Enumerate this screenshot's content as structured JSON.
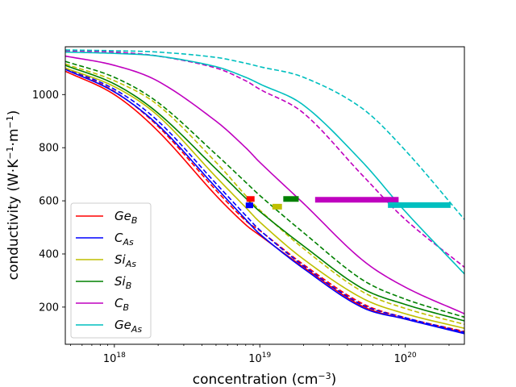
{
  "chart_data": {
    "type": "line",
    "xscale": "log",
    "xlim": [
      4.6e+17,
      2.55e+20
    ],
    "ylim": [
      60,
      1180
    ],
    "xlabel": {
      "base": "concentration (cm",
      "sup": "−3",
      "end": ")"
    },
    "ylabel": {
      "base": "conductivity (W·K",
      "sup1": "−1",
      "mid": "·m",
      "sup2": "−1",
      "end": ")"
    },
    "x_ticks": [
      {
        "value": 1e+18,
        "base": "10",
        "exp": "18"
      },
      {
        "value": 1e+19,
        "base": "10",
        "exp": "19"
      },
      {
        "value": 1e+20,
        "base": "10",
        "exp": "20"
      }
    ],
    "y_ticks": [
      {
        "value": 200,
        "label": "200"
      },
      {
        "value": 400,
        "label": "400"
      },
      {
        "value": 600,
        "label": "600"
      },
      {
        "value": 800,
        "label": "800"
      },
      {
        "value": 1000,
        "label": "1000"
      }
    ],
    "legend_position": "lower-left",
    "series": [
      {
        "id": "ge-b",
        "main": "Ge",
        "sub": "B",
        "color": "#ff0000",
        "solid": [
          [
            4.6e+17,
            1088
          ],
          [
            1e+18,
            1000
          ],
          [
            2e+18,
            862
          ],
          [
            5e+18,
            620
          ],
          [
            8e+18,
            510
          ],
          [
            1e+19,
            470
          ],
          [
            2e+19,
            350
          ],
          [
            5e+19,
            205
          ],
          [
            1e+20,
            155
          ],
          [
            2.55e+20,
            104
          ]
        ],
        "dashed": [
          [
            4.6e+17,
            1098
          ],
          [
            1e+18,
            1012
          ],
          [
            2e+18,
            880
          ],
          [
            5e+18,
            640
          ],
          [
            8e+18,
            525
          ],
          [
            1e+19,
            488
          ],
          [
            2e+19,
            360
          ],
          [
            5e+19,
            215
          ],
          [
            1e+20,
            160
          ],
          [
            2.55e+20,
            108
          ]
        ],
        "bar": {
          "x_start": 8.1e+18,
          "x_end": 9.2e+18,
          "y": 607
        }
      },
      {
        "id": "c-as",
        "main": "C",
        "sub": "As",
        "color": "#0000ff",
        "solid": [
          [
            4.6e+17,
            1095
          ],
          [
            1e+18,
            1010
          ],
          [
            2e+18,
            885
          ],
          [
            5e+18,
            650
          ],
          [
            8e+18,
            530
          ],
          [
            1e+19,
            475
          ],
          [
            2e+19,
            345
          ],
          [
            5e+19,
            200
          ],
          [
            1e+20,
            155
          ],
          [
            2.55e+20,
            100
          ]
        ],
        "dashed": [
          [
            4.6e+17,
            1100
          ],
          [
            1e+18,
            1020
          ],
          [
            2e+18,
            900
          ],
          [
            5e+18,
            665
          ],
          [
            8e+18,
            545
          ],
          [
            1e+19,
            490
          ],
          [
            2e+19,
            355
          ],
          [
            5e+19,
            210
          ],
          [
            1e+20,
            160
          ],
          [
            2.55e+20,
            105
          ]
        ],
        "bar": {
          "x_start": 8e+18,
          "x_end": 9e+18,
          "y": 583
        }
      },
      {
        "id": "si-as",
        "main": "Si",
        "sub": "As",
        "color": "#bfbf00",
        "solid": [
          [
            4.6e+17,
            1100
          ],
          [
            1e+18,
            1030
          ],
          [
            2e+18,
            920
          ],
          [
            5e+18,
            690
          ],
          [
            8e+18,
            575
          ],
          [
            1e+19,
            520
          ],
          [
            2e+19,
            380
          ],
          [
            5e+19,
            235
          ],
          [
            1e+20,
            175
          ],
          [
            2.55e+20,
            120
          ]
        ],
        "dashed": [
          [
            4.6e+17,
            1115
          ],
          [
            1e+18,
            1052
          ],
          [
            2e+18,
            960
          ],
          [
            5e+18,
            745
          ],
          [
            8e+18,
            620
          ],
          [
            1e+19,
            565
          ],
          [
            2e+19,
            420
          ],
          [
            5e+19,
            260
          ],
          [
            1e+20,
            195
          ],
          [
            2.55e+20,
            135
          ]
        ],
        "bar": {
          "x_start": 1.22e+19,
          "x_end": 1.42e+19,
          "y": 578
        }
      },
      {
        "id": "si-b",
        "main": "Si",
        "sub": "B",
        "color": "#008000",
        "solid": [
          [
            4.6e+17,
            1110
          ],
          [
            1e+18,
            1040
          ],
          [
            2e+18,
            930
          ],
          [
            5e+18,
            720
          ],
          [
            8e+18,
            610
          ],
          [
            1e+19,
            560
          ],
          [
            2e+19,
            430
          ],
          [
            5e+19,
            272
          ],
          [
            1e+20,
            210
          ],
          [
            2.55e+20,
            148
          ]
        ],
        "dashed": [
          [
            4.6e+17,
            1125
          ],
          [
            1e+18,
            1065
          ],
          [
            2e+18,
            970
          ],
          [
            5e+18,
            775
          ],
          [
            8e+18,
            670
          ],
          [
            1e+19,
            620
          ],
          [
            2e+19,
            480
          ],
          [
            5e+19,
            305
          ],
          [
            1e+20,
            230
          ],
          [
            2.55e+20,
            162
          ]
        ],
        "bar": {
          "x_start": 1.45e+19,
          "x_end": 1.85e+19,
          "y": 607
        }
      },
      {
        "id": "c-b",
        "main": "C",
        "sub": "B",
        "color": "#bf00bf",
        "solid": [
          [
            4.6e+17,
            1145
          ],
          [
            1e+18,
            1110
          ],
          [
            2e+18,
            1050
          ],
          [
            5e+18,
            900
          ],
          [
            8e+18,
            800
          ],
          [
            1e+19,
            745
          ],
          [
            2e+19,
            590
          ],
          [
            5e+19,
            380
          ],
          [
            1e+20,
            275
          ],
          [
            2.55e+20,
            175
          ]
        ],
        "dashed": [
          [
            4.6e+17,
            1165
          ],
          [
            1e+18,
            1160
          ],
          [
            2e+18,
            1145
          ],
          [
            5e+18,
            1100
          ],
          [
            8e+18,
            1052
          ],
          [
            1e+19,
            1020
          ],
          [
            2e+19,
            930
          ],
          [
            5e+19,
            700
          ],
          [
            1e+20,
            530
          ],
          [
            2.55e+20,
            350
          ]
        ],
        "bar": {
          "x_start": 2.4e+19,
          "x_end": 9e+19,
          "y": 604
        }
      },
      {
        "id": "ge-as",
        "main": "Ge",
        "sub": "As",
        "color": "#00bfbf",
        "solid": [
          [
            4.6e+17,
            1160
          ],
          [
            1e+18,
            1155
          ],
          [
            2e+18,
            1145
          ],
          [
            5e+18,
            1105
          ],
          [
            8e+18,
            1065
          ],
          [
            1e+19,
            1040
          ],
          [
            2e+19,
            960
          ],
          [
            5e+19,
            750
          ],
          [
            1e+20,
            560
          ],
          [
            2.55e+20,
            325
          ]
        ],
        "dashed": [
          [
            4.6e+17,
            1168
          ],
          [
            1e+18,
            1165
          ],
          [
            2e+18,
            1160
          ],
          [
            5e+18,
            1140
          ],
          [
            8e+18,
            1118
          ],
          [
            1e+19,
            1105
          ],
          [
            2e+19,
            1065
          ],
          [
            5e+19,
            950
          ],
          [
            1e+20,
            790
          ],
          [
            2.55e+20,
            530
          ]
        ],
        "bar": {
          "x_start": 7.6e+19,
          "x_end": 2.05e+20,
          "y": 584
        }
      }
    ]
  }
}
